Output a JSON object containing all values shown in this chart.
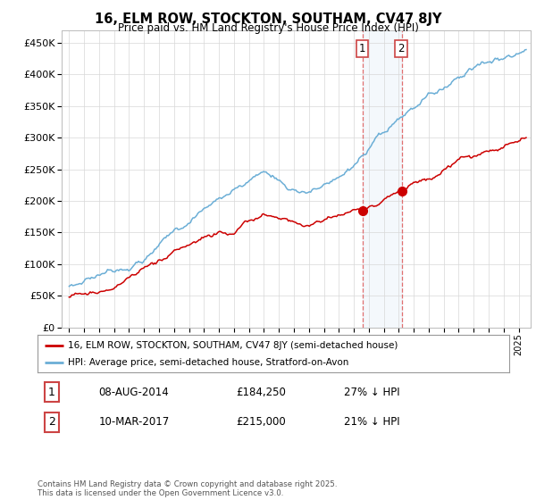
{
  "title": "16, ELM ROW, STOCKTON, SOUTHAM, CV47 8JY",
  "subtitle": "Price paid vs. HM Land Registry's House Price Index (HPI)",
  "hpi_color": "#6baed6",
  "price_color": "#cc0000",
  "purchase1_date": "08-AUG-2014",
  "purchase1_price": 184250,
  "purchase1_year": 2014.6,
  "purchase2_date": "10-MAR-2017",
  "purchase2_price": 215000,
  "purchase2_year": 2017.2,
  "purchase1_hpi_pct": "27% ↓ HPI",
  "purchase2_hpi_pct": "21% ↓ HPI",
  "legend_line1": "16, ELM ROW, STOCKTON, SOUTHAM, CV47 8JY (semi-detached house)",
  "legend_line2": "HPI: Average price, semi-detached house, Stratford-on-Avon",
  "footer": "Contains HM Land Registry data © Crown copyright and database right 2025.\nThis data is licensed under the Open Government Licence v3.0.",
  "ylim_max": 470000,
  "xmin": 1994.5,
  "xmax": 2025.8
}
